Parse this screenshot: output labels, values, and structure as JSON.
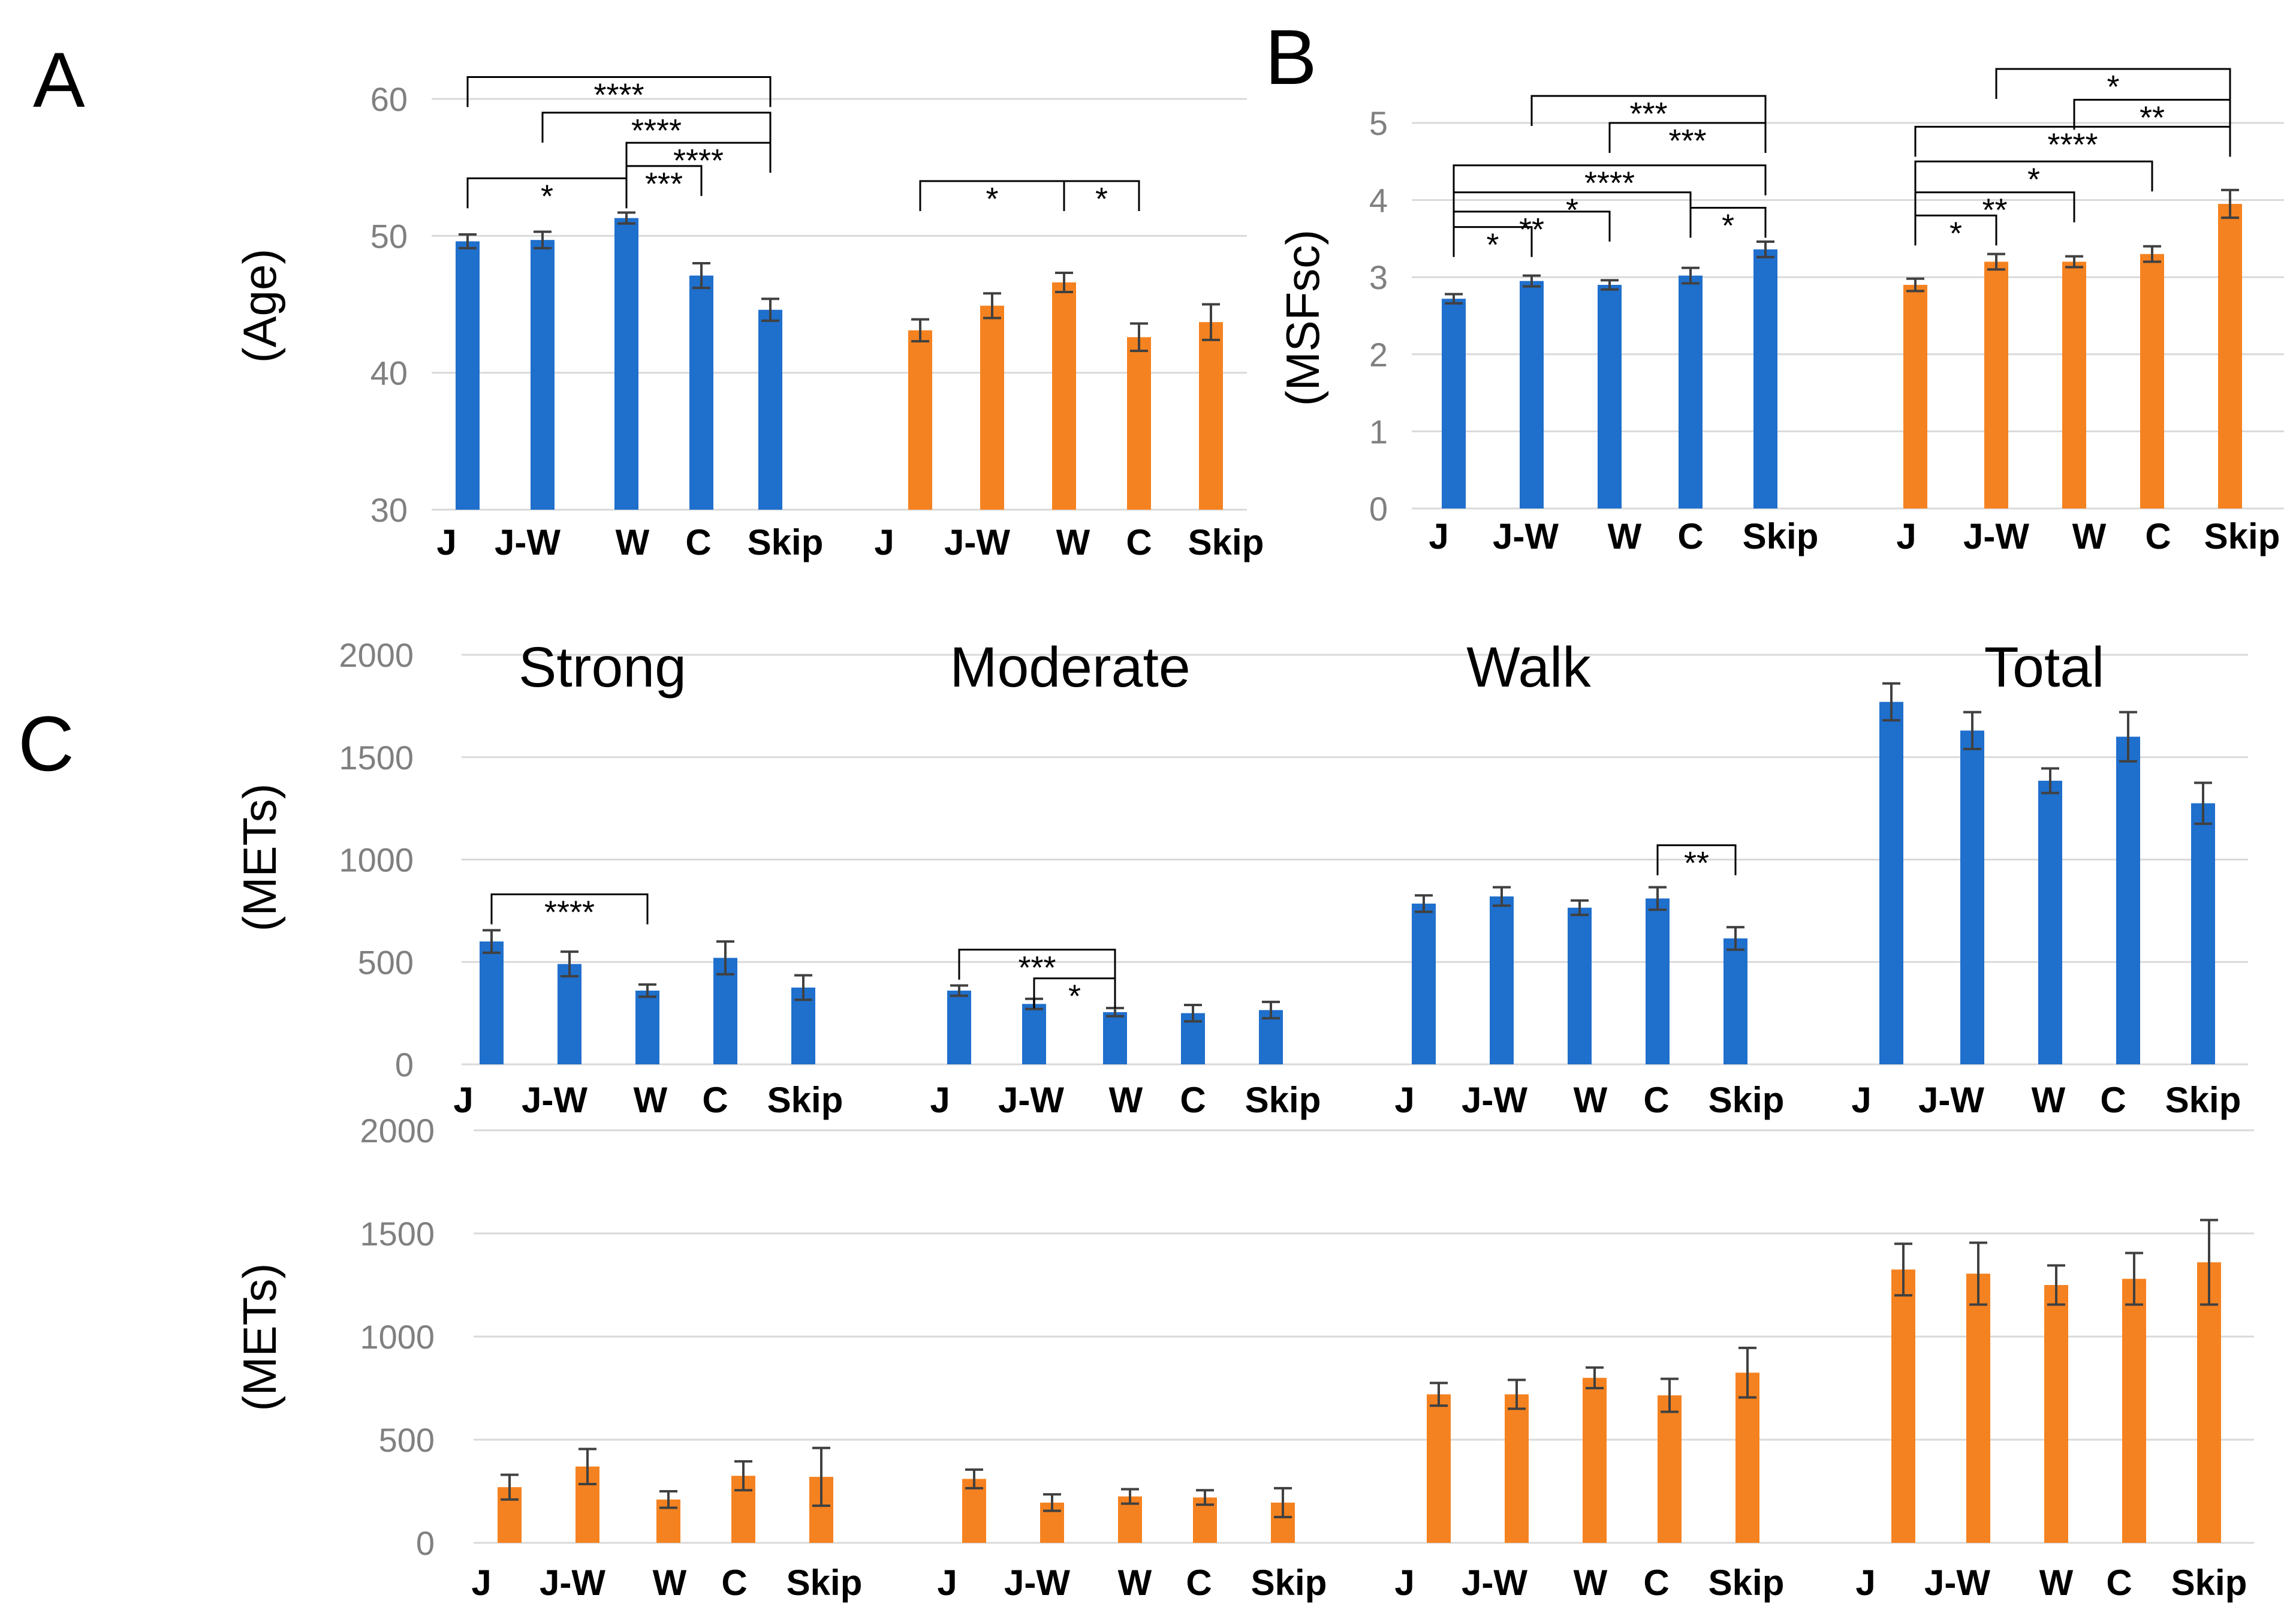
{
  "colors": {
    "blue": "#1f6fcc",
    "orange": "#f58220",
    "grid": "#d9d9d9",
    "err": "#404040"
  },
  "panels": {
    "a": "A",
    "b": "B",
    "c": "C"
  },
  "chart_data": [
    {
      "id": "A",
      "type": "bar",
      "ylabel": "(Age)",
      "ylim": [
        30,
        60
      ],
      "yticks": [
        30,
        40,
        50,
        60
      ],
      "groups": [
        {
          "series": "blue",
          "categories": [
            "J",
            "J-W",
            "W",
            "C",
            "Skip"
          ],
          "values": [
            49.6,
            49.7,
            51.3,
            47.1,
            44.6
          ],
          "errors": [
            0.5,
            0.6,
            0.4,
            0.9,
            0.8
          ]
        },
        {
          "series": "orange",
          "categories": [
            "J",
            "J-W",
            "W",
            "C",
            "Skip"
          ],
          "values": [
            43.1,
            44.9,
            46.6,
            42.6,
            43.7
          ],
          "errors": [
            0.8,
            0.9,
            0.7,
            1.0,
            1.3
          ]
        }
      ],
      "significance": [
        {
          "g": 0,
          "from": 0,
          "to": 4,
          "label": "****",
          "level": 61.6
        },
        {
          "g": 0,
          "from": 1,
          "to": 4,
          "label": "****",
          "level": 59.0
        },
        {
          "g": 0,
          "from": 2,
          "to": 4,
          "label": "****",
          "level": 56.8
        },
        {
          "g": 0,
          "from": 0,
          "to": 2,
          "label": "*",
          "level": 54.2
        },
        {
          "g": 0,
          "from": 2,
          "to": 3,
          "label": "***",
          "level": 55.1
        },
        {
          "g": 1,
          "from": 0,
          "to": 2,
          "label": "*",
          "level": 54.0
        },
        {
          "g": 1,
          "from": 2,
          "to": 3,
          "label": "*",
          "level": 54.0
        }
      ]
    },
    {
      "id": "B",
      "type": "bar",
      "ylabel": "(MSFsc)",
      "ylim": [
        0,
        5
      ],
      "yticks": [
        0,
        1,
        2,
        3,
        4,
        5
      ],
      "groups": [
        {
          "series": "blue",
          "categories": [
            "J",
            "J-W",
            "W",
            "C",
            "Skip"
          ],
          "values": [
            2.72,
            2.95,
            2.9,
            3.02,
            3.36
          ],
          "errors": [
            0.06,
            0.07,
            0.06,
            0.1,
            0.1
          ]
        },
        {
          "series": "orange",
          "categories": [
            "J",
            "J-W",
            "W",
            "C",
            "Skip"
          ],
          "values": [
            2.9,
            3.2,
            3.2,
            3.3,
            3.95
          ],
          "errors": [
            0.08,
            0.1,
            0.07,
            0.1,
            0.18
          ]
        }
      ],
      "significance": [
        {
          "g": 0,
          "from": 1,
          "to": 4,
          "label": "***",
          "level": 5.35
        },
        {
          "g": 0,
          "from": 2,
          "to": 4,
          "label": "***",
          "level": 5.0
        },
        {
          "g": 0,
          "from": 0,
          "to": 4,
          "label": "****",
          "level": 4.45
        },
        {
          "g": 0,
          "from": 0,
          "to": 3,
          "label": "*",
          "level": 4.1
        },
        {
          "g": 0,
          "from": 3,
          "to": 4,
          "label": "*",
          "level": 3.9
        },
        {
          "g": 0,
          "from": 0,
          "to": 2,
          "label": "**",
          "level": 3.85
        },
        {
          "g": 0,
          "from": 0,
          "to": 1,
          "label": "*",
          "level": 3.65
        },
        {
          "g": 1,
          "from": 1,
          "to": 4,
          "label": "*",
          "level": 5.7
        },
        {
          "g": 1,
          "from": 2,
          "to": 4,
          "label": "**",
          "level": 5.3
        },
        {
          "g": 1,
          "from": 0,
          "to": 4,
          "label": "****",
          "level": 4.95
        },
        {
          "g": 1,
          "from": 0,
          "to": 3,
          "label": "*",
          "level": 4.5
        },
        {
          "g": 1,
          "from": 0,
          "to": 2,
          "label": "**",
          "level": 4.1
        },
        {
          "g": 1,
          "from": 0,
          "to": 1,
          "label": "*",
          "level": 3.8
        }
      ]
    },
    {
      "id": "C-top",
      "type": "bar",
      "ylabel": "(METs)",
      "ylim": [
        0,
        2000
      ],
      "yticks": [
        0,
        500,
        1000,
        1500,
        2000
      ],
      "titles": [
        "Strong",
        "Moderate",
        "Walk",
        "Total"
      ],
      "groups": [
        {
          "series": "blue",
          "categories": [
            "J",
            "J-W",
            "W",
            "C",
            "Skip"
          ],
          "values": [
            600,
            490,
            360,
            520,
            375
          ],
          "errors": [
            55,
            60,
            30,
            80,
            60
          ]
        },
        {
          "series": "blue",
          "categories": [
            "J",
            "J-W",
            "W",
            "C",
            "Skip"
          ],
          "values": [
            360,
            295,
            255,
            250,
            265
          ],
          "errors": [
            25,
            25,
            20,
            40,
            40
          ]
        },
        {
          "series": "blue",
          "categories": [
            "J",
            "J-W",
            "W",
            "C",
            "Skip"
          ],
          "values": [
            785,
            820,
            765,
            810,
            615
          ],
          "errors": [
            40,
            45,
            35,
            55,
            55
          ]
        },
        {
          "series": "blue",
          "categories": [
            "J",
            "J-W",
            "W",
            "C",
            "Skip"
          ],
          "values": [
            1770,
            1630,
            1385,
            1600,
            1275
          ],
          "errors": [
            90,
            90,
            60,
            120,
            100
          ]
        }
      ],
      "significance": [
        {
          "g": 0,
          "from": 0,
          "to": 2,
          "label": "****",
          "level": 830
        },
        {
          "g": 1,
          "from": 0,
          "to": 2,
          "label": "***",
          "level": 560
        },
        {
          "g": 1,
          "from": 1,
          "to": 2,
          "label": "*",
          "level": 420
        },
        {
          "g": 2,
          "from": 3,
          "to": 4,
          "label": "**",
          "level": 1070
        }
      ]
    },
    {
      "id": "C-bottom",
      "type": "bar",
      "ylabel": "(METs)",
      "ylim": [
        0,
        2000
      ],
      "yticks": [
        0,
        500,
        1000,
        1500,
        2000
      ],
      "groups": [
        {
          "series": "orange",
          "categories": [
            "J",
            "J-W",
            "W",
            "C",
            "Skip"
          ],
          "values": [
            270,
            370,
            210,
            325,
            320
          ],
          "errors": [
            60,
            85,
            40,
            70,
            140
          ]
        },
        {
          "series": "orange",
          "categories": [
            "J",
            "J-W",
            "W",
            "C",
            "Skip"
          ],
          "values": [
            310,
            195,
            225,
            220,
            195
          ],
          "errors": [
            45,
            40,
            35,
            35,
            70
          ]
        },
        {
          "series": "orange",
          "categories": [
            "J",
            "J-W",
            "W",
            "C",
            "Skip"
          ],
          "values": [
            720,
            720,
            800,
            715,
            825
          ],
          "errors": [
            55,
            70,
            50,
            80,
            120
          ]
        },
        {
          "series": "orange",
          "categories": [
            "J",
            "J-W",
            "W",
            "C",
            "Skip"
          ],
          "values": [
            1325,
            1305,
            1250,
            1280,
            1360
          ],
          "errors": [
            125,
            150,
            95,
            125,
            205
          ]
        }
      ],
      "significance": []
    }
  ]
}
